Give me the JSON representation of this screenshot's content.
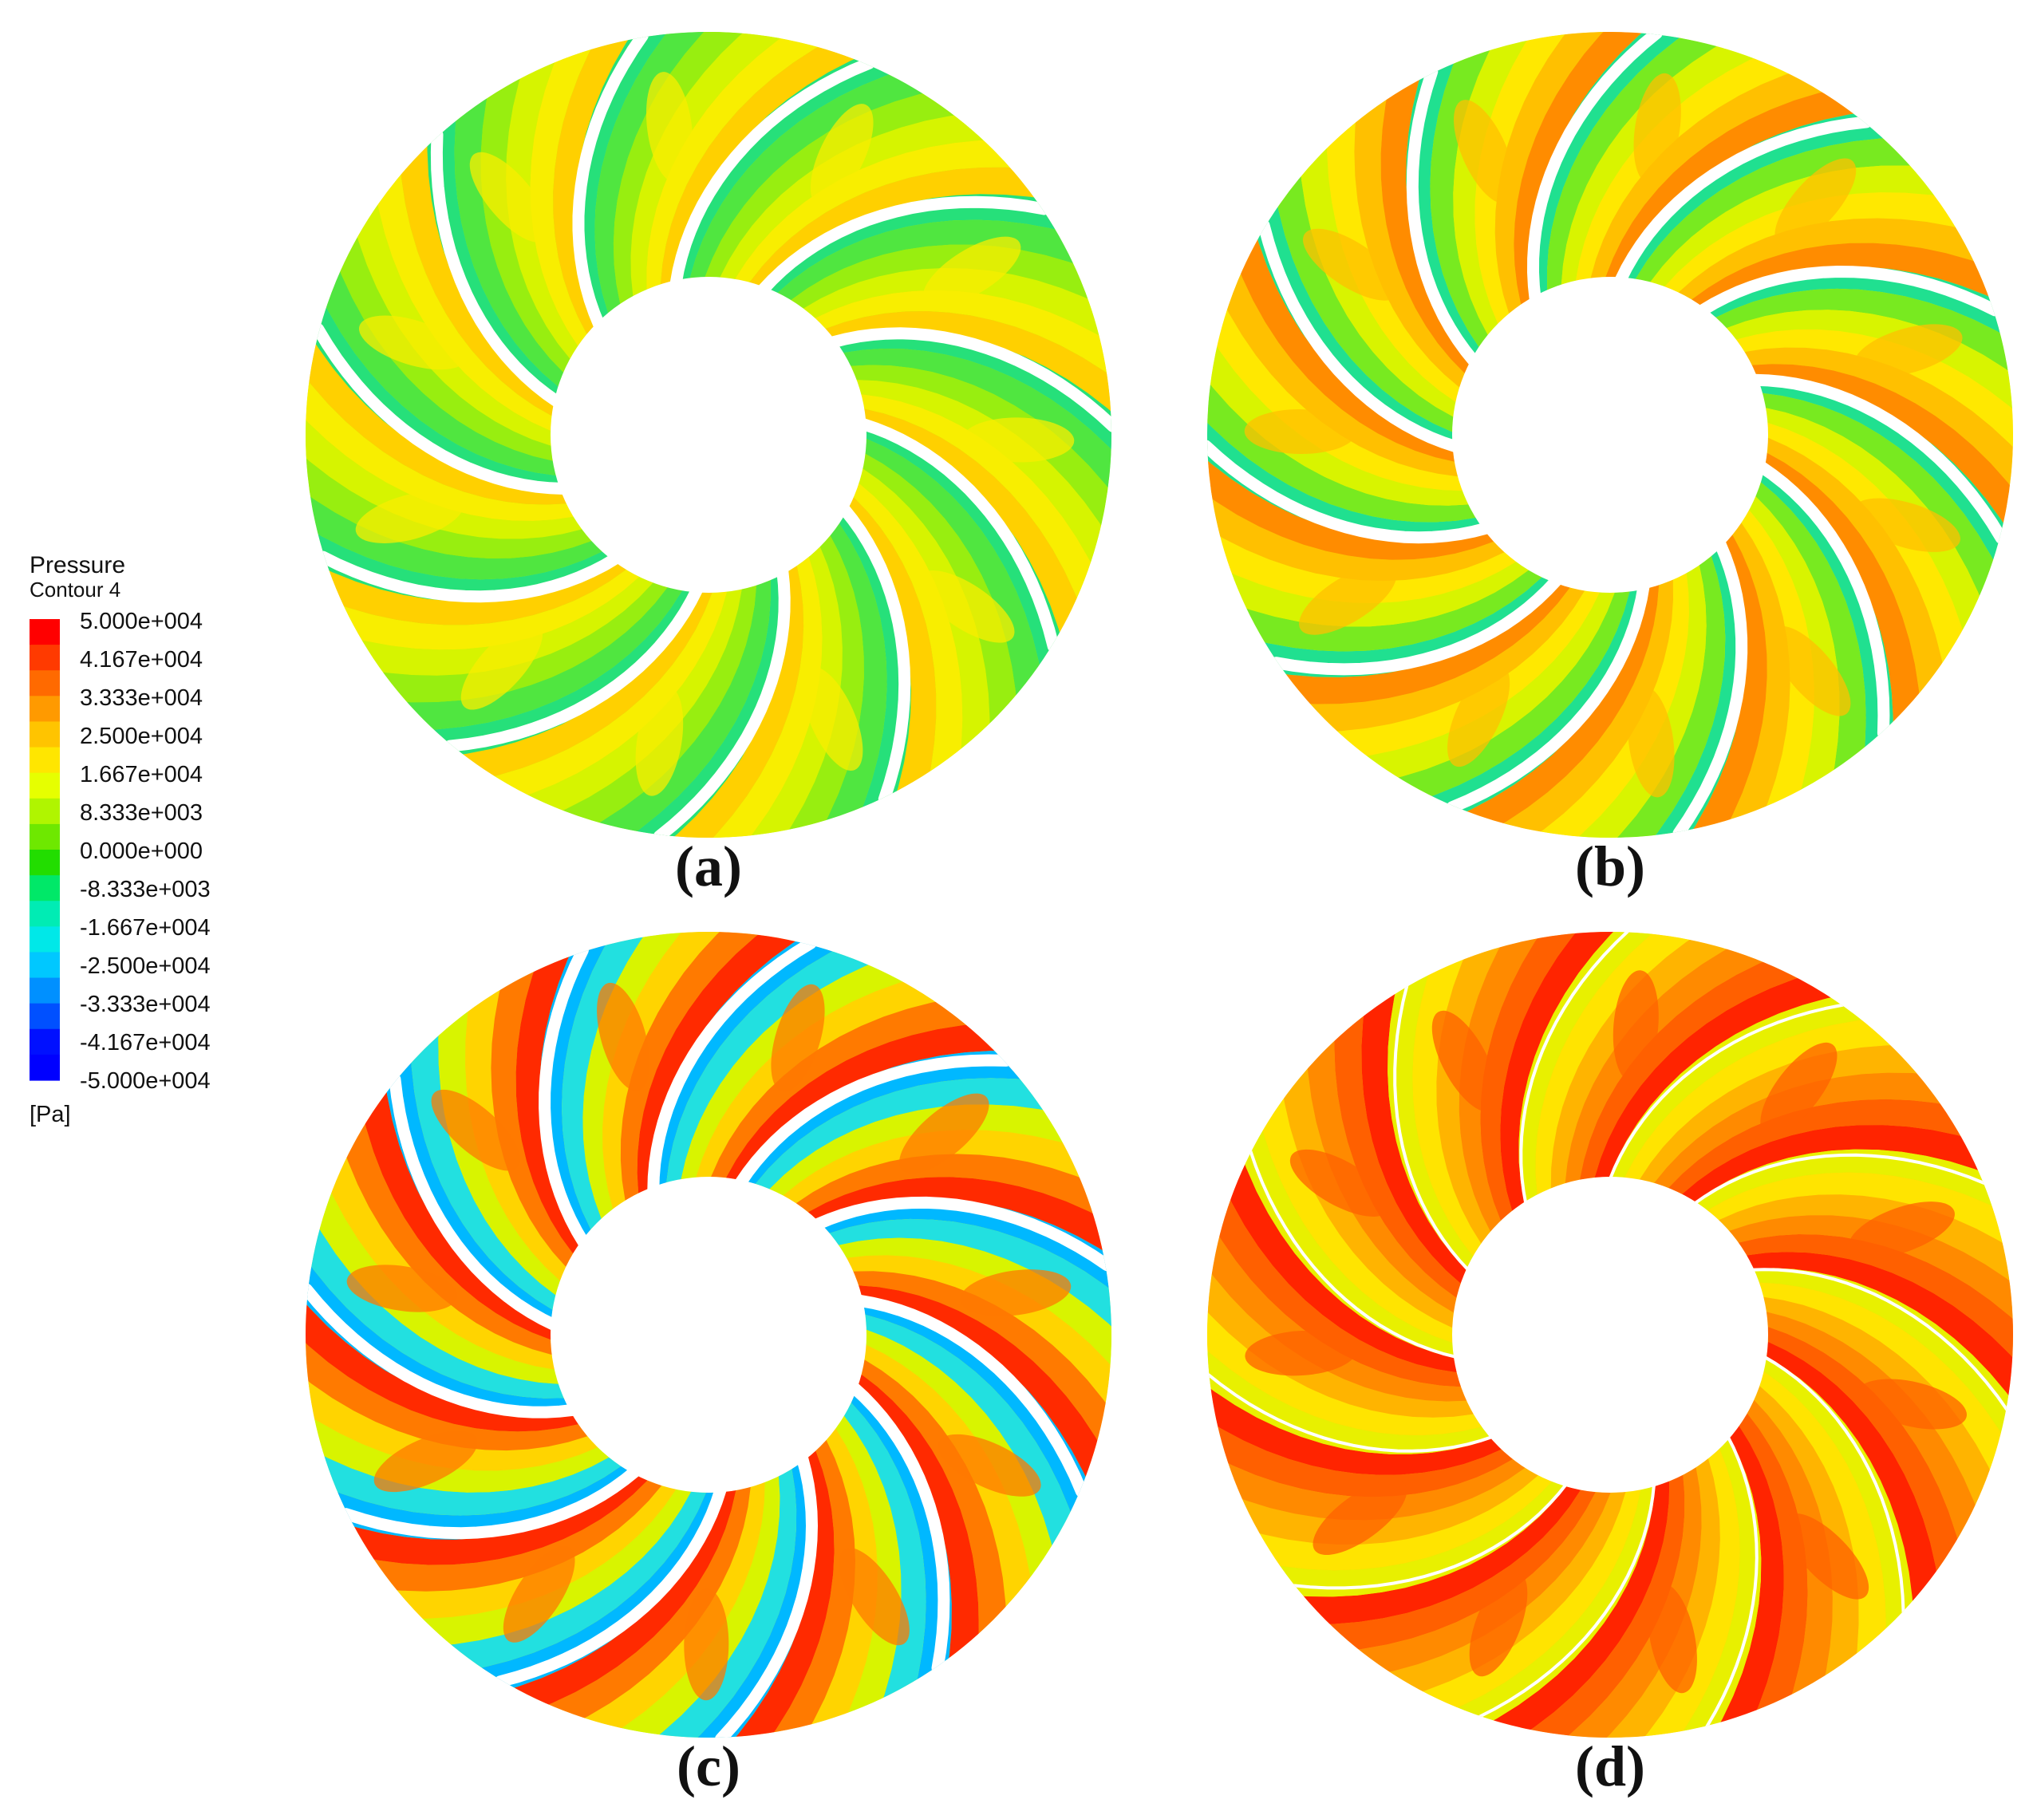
{
  "legend": {
    "title": "Pressure",
    "subtitle": "Contour 4",
    "unit": "[Pa]",
    "ticks": [
      "5.000e+004",
      "4.167e+004",
      "3.333e+004",
      "2.500e+004",
      "1.667e+004",
      "8.333e+003",
      "0.000e+000",
      "-8.333e+003",
      "-1.667e+004",
      "-2.500e+004",
      "-3.333e+004",
      "-4.167e+004",
      "-5.000e+004"
    ],
    "colors": [
      "#ff0000",
      "#ff3a00",
      "#ff6a00",
      "#ff9a00",
      "#ffc400",
      "#ffe600",
      "#e6ff00",
      "#b0f500",
      "#6ee800",
      "#22dd00",
      "#00e868",
      "#00ecb4",
      "#00e8e8",
      "#00c8ff",
      "#0090ff",
      "#0050ff",
      "#0010ff",
      "#0000ff"
    ]
  },
  "panels": [
    {
      "label": "(a)",
      "blade_count": 11,
      "blade_gap": "white",
      "base_color": "#b8f000",
      "palette": [
        "#26e07a",
        "#50e640",
        "#98ee10",
        "#d6f400",
        "#f8ee00",
        "#ffd000"
      ],
      "rotation_deg": -4
    },
    {
      "label": "(b)",
      "blade_count": 11,
      "blade_gap": "white",
      "base_color": "#e8f200",
      "palette": [
        "#20e090",
        "#78ea20",
        "#d8f400",
        "#ffe800",
        "#ffc000",
        "#ff8c00"
      ],
      "rotation_deg": 12
    },
    {
      "label": "(c)",
      "blade_count": 11,
      "blade_gap": "white",
      "base_color": "#d8f400",
      "palette": [
        "#00b8ff",
        "#22e0e0",
        "#d8f400",
        "#ffd400",
        "#ff7a00",
        "#ff2a00"
      ],
      "rotation_deg": 20
    },
    {
      "label": "(d)",
      "blade_count": 11,
      "blade_gap": "thin",
      "base_color": "#ffd000",
      "palette": [
        "#e8f000",
        "#ffe400",
        "#ffb400",
        "#ff8a00",
        "#ff6000",
        "#ff2400"
      ],
      "rotation_deg": 8
    }
  ]
}
